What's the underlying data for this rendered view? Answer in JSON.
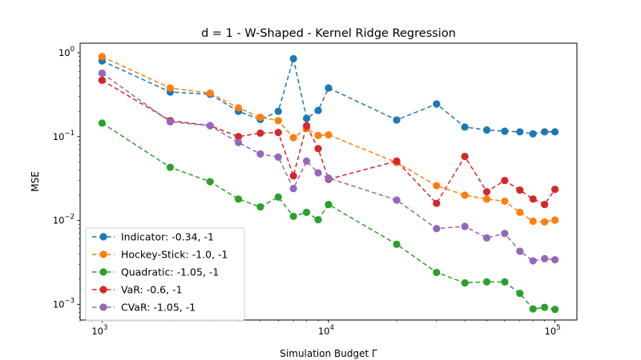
{
  "chart_data": {
    "type": "line",
    "title": "d = 1 - W-Shaped - Kernel Ridge Regression",
    "xlabel": "Simulation Budget Γ",
    "ylabel": "MSE",
    "xscale": "log",
    "yscale": "log",
    "xlim": [
      800,
      125000
    ],
    "ylim": [
      0.00065,
      1.3
    ],
    "x_ticks": [
      {
        "base": "10",
        "exp": "3",
        "value": 1000
      },
      {
        "base": "10",
        "exp": "4",
        "value": 10000
      },
      {
        "base": "10",
        "exp": "5",
        "value": 100000
      }
    ],
    "y_ticks": [
      {
        "base": "10",
        "exp": "−3",
        "value": 0.001
      },
      {
        "base": "10",
        "exp": "−2",
        "value": 0.01
      },
      {
        "base": "10",
        "exp": "−1",
        "value": 0.1
      },
      {
        "base": "10",
        "exp": "0",
        "value": 1
      }
    ],
    "grid": false,
    "legend_position": "lower-left",
    "x": [
      1000,
      2000,
      3000,
      4000,
      5000,
      6000,
      7000,
      8000,
      9000,
      10000,
      20000,
      30000,
      40000,
      50000,
      60000,
      70000,
      80000,
      90000,
      100000
    ],
    "series": [
      {
        "name": "Indicator: -0.34, -1",
        "color": "#1f77b4",
        "values": [
          0.8,
          0.34,
          0.32,
          0.2,
          0.16,
          0.2,
          0.85,
          0.165,
          0.205,
          0.38,
          0.158,
          0.245,
          0.13,
          0.12,
          0.116,
          0.114,
          0.108,
          0.114,
          0.114
        ]
      },
      {
        "name": "Hockey-Stick: -1.0, -1",
        "color": "#ff7f0e",
        "values": [
          0.9,
          0.38,
          0.33,
          0.22,
          0.17,
          0.155,
          0.097,
          0.125,
          0.103,
          0.105,
          0.049,
          0.026,
          0.02,
          0.018,
          0.017,
          0.0125,
          0.0098,
          0.0096,
          0.0101
        ]
      },
      {
        "name": "Quadratic: -1.05, -1",
        "color": "#2ca02c",
        "values": [
          0.145,
          0.043,
          0.029,
          0.018,
          0.0145,
          0.019,
          0.0112,
          0.0125,
          0.0102,
          0.0155,
          0.0052,
          0.0024,
          0.0018,
          0.00185,
          0.00185,
          0.00135,
          0.00088,
          0.00092,
          0.00087
        ]
      },
      {
        "name": "VaR: -0.6, -1",
        "color": "#d62728",
        "values": [
          0.47,
          0.155,
          0.135,
          0.1,
          0.11,
          0.112,
          0.034,
          0.135,
          0.072,
          0.031,
          0.051,
          0.016,
          0.058,
          0.022,
          0.03,
          0.023,
          0.018,
          0.0155,
          0.0235
        ]
      },
      {
        "name": "CVaR: -1.05, -1",
        "color": "#9467bd",
        "values": [
          0.57,
          0.15,
          0.135,
          0.085,
          0.062,
          0.057,
          0.024,
          0.051,
          0.037,
          0.032,
          0.0175,
          0.008,
          0.0085,
          0.0062,
          0.007,
          0.0043,
          0.0033,
          0.0035,
          0.0034
        ]
      }
    ]
  }
}
